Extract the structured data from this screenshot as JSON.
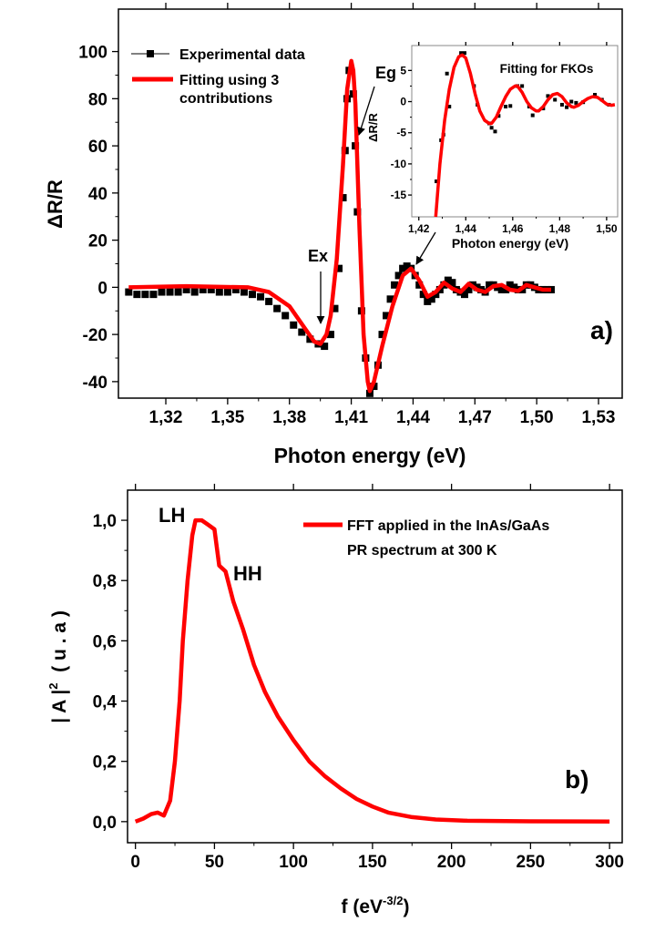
{
  "colors": {
    "fit": "#ff0000",
    "data": "#000000",
    "axis": "#000000"
  },
  "chart_data": [
    {
      "type": "line",
      "panel_label": "a)",
      "xlabel": "Photon energy (eV)",
      "ylabel": "ΔR/R",
      "xlim": [
        1.297,
        1.5415
      ],
      "ylim": [
        -47,
        118
      ],
      "xticks": [
        1.32,
        1.35,
        1.38,
        1.41,
        1.44,
        1.47,
        1.5,
        1.53
      ],
      "xtick_labels": [
        "1,32",
        "1,35",
        "1,38",
        "1,41",
        "1,44",
        "1,47",
        "1,50",
        "1,53"
      ],
      "yticks": [
        -40,
        -20,
        0,
        20,
        40,
        60,
        80,
        100
      ],
      "ytick_labels": [
        "-40",
        "-20",
        "0",
        "20",
        "40",
        "60",
        "80",
        "100"
      ],
      "grid": false,
      "legend_position": "top-left",
      "annotations": [
        "Eg",
        "Ex"
      ],
      "series": [
        {
          "name": "Experimental data",
          "style": "scatter-square",
          "x": [
            1.302,
            1.306,
            1.31,
            1.314,
            1.318,
            1.322,
            1.326,
            1.33,
            1.334,
            1.338,
            1.342,
            1.346,
            1.35,
            1.354,
            1.358,
            1.362,
            1.366,
            1.37,
            1.374,
            1.378,
            1.382,
            1.386,
            1.39,
            1.394,
            1.397,
            1.4,
            1.402,
            1.404,
            1.406,
            1.407,
            1.408,
            1.409,
            1.411,
            1.412,
            1.413,
            1.415,
            1.417,
            1.419,
            1.421,
            1.423,
            1.425,
            1.427,
            1.429,
            1.431,
            1.433,
            1.435,
            1.437,
            1.439,
            1.441,
            1.443,
            1.445,
            1.447,
            1.449,
            1.451,
            1.453,
            1.455,
            1.457,
            1.459,
            1.461,
            1.463,
            1.465,
            1.467,
            1.469,
            1.471,
            1.473,
            1.475,
            1.477,
            1.479,
            1.481,
            1.483,
            1.485,
            1.487,
            1.489,
            1.491,
            1.493,
            1.495,
            1.497,
            1.499,
            1.501,
            1.503,
            1.505,
            1.507
          ],
          "y": [
            -2,
            -3,
            -3,
            -3,
            -2,
            -2,
            -2,
            -1,
            -2,
            -1,
            -1,
            -2,
            -2,
            -1,
            -2,
            -3,
            -4,
            -6,
            -9,
            -12,
            -16,
            -19,
            -22,
            -24,
            -25,
            -20,
            -9,
            8,
            38,
            58,
            80,
            92,
            82,
            60,
            32,
            -10,
            -30,
            -45,
            -42,
            -33,
            -20,
            -12,
            -5,
            1,
            5,
            8,
            9,
            8,
            5,
            1,
            -3,
            -6,
            -5,
            -3,
            -1,
            1,
            3,
            2,
            -1,
            -2,
            -3,
            -1,
            1,
            0,
            -1,
            -2,
            1,
            1,
            0,
            -1,
            -1,
            1,
            0,
            -1,
            -1,
            1,
            1,
            0,
            -1,
            -1,
            -1,
            -1
          ]
        },
        {
          "name": "Fitting using 3 contributions",
          "style": "line",
          "x": [
            1.302,
            1.33,
            1.36,
            1.37,
            1.38,
            1.388,
            1.392,
            1.395,
            1.398,
            1.4,
            1.403,
            1.406,
            1.408,
            1.41,
            1.411,
            1.412,
            1.414,
            1.416,
            1.418,
            1.419,
            1.421,
            1.425,
            1.43,
            1.435,
            1.439,
            1.443,
            1.447,
            1.451,
            1.455,
            1.459,
            1.463,
            1.467,
            1.471,
            1.475,
            1.479,
            1.483,
            1.487,
            1.491,
            1.495,
            1.499,
            1.503,
            1.507
          ],
          "y": [
            0,
            0.5,
            0,
            -2,
            -8,
            -18,
            -23,
            -24,
            -20,
            -12,
            12,
            52,
            84,
            96,
            92,
            78,
            25,
            -20,
            -40,
            -44,
            -40,
            -25,
            -8,
            5,
            8,
            3,
            -4,
            -2,
            2,
            -0.5,
            -2,
            1.5,
            -1,
            -2,
            0.5,
            1,
            -1,
            -1.5,
            1,
            0,
            -1,
            -1
          ]
        }
      ]
    },
    {
      "type": "line",
      "title": "Fitting for FKOs",
      "role": "inset",
      "xlabel": "Photon energy (eV)",
      "ylabel": "ΔR/R",
      "xlim": [
        1.417,
        1.5047
      ],
      "ylim": [
        -18.5,
        9
      ],
      "xticks": [
        1.42,
        1.44,
        1.46,
        1.48,
        1.5
      ],
      "xtick_labels": [
        "1,42",
        "1,44",
        "1,46",
        "1,48",
        "1,50"
      ],
      "yticks": [
        -15,
        -10,
        -5,
        0,
        5
      ],
      "ytick_labels": [
        "-15",
        "-10",
        "-5",
        "0",
        "5"
      ],
      "series": [
        {
          "style": "scatter-square",
          "x": [
            1.4275,
            1.4295,
            1.4305,
            1.432,
            1.433,
            1.438,
            1.4395,
            1.4435,
            1.445,
            1.45,
            1.451,
            1.4525,
            1.454,
            1.457,
            1.459,
            1.462,
            1.464,
            1.467,
            1.4685,
            1.473,
            1.475,
            1.478,
            1.481,
            1.483,
            1.485,
            1.487,
            1.49,
            1.495,
            1.498,
            1.501
          ],
          "y": [
            -12.8,
            -6.2,
            -5.3,
            4.5,
            -0.8,
            7.8,
            7.8,
            2.5,
            -0.5,
            -3.5,
            -4.2,
            -4.8,
            -2.3,
            -0.8,
            -0.7,
            2.5,
            2.5,
            -0.8,
            -2.2,
            -1.1,
            0.9,
            0.3,
            -0.5,
            -0.9,
            0,
            -0.2,
            -0.1,
            1.1,
            0.3,
            -0.5
          ]
        },
        {
          "style": "line",
          "x": [
            1.4272,
            1.429,
            1.431,
            1.433,
            1.435,
            1.437,
            1.4385,
            1.44,
            1.442,
            1.444,
            1.446,
            1.448,
            1.45,
            1.451,
            1.453,
            1.455,
            1.457,
            1.459,
            1.461,
            1.462,
            1.464,
            1.466,
            1.468,
            1.47,
            1.471,
            1.473,
            1.475,
            1.477,
            1.479,
            1.481,
            1.483,
            1.485,
            1.486,
            1.488,
            1.49,
            1.492,
            1.494,
            1.496,
            1.498,
            1.5,
            1.502,
            1.5035
          ],
          "y": [
            -18.5,
            -10,
            -3,
            2,
            5.5,
            7.2,
            7.5,
            7,
            4.5,
            1.2,
            -1.5,
            -3,
            -3.5,
            -3.5,
            -2.5,
            -0.8,
            0.8,
            2,
            2.5,
            2.5,
            1.5,
            0,
            -1,
            -1.5,
            -1.5,
            -0.8,
            0.3,
            1.1,
            1.3,
            0.8,
            -0.2,
            -0.8,
            -0.9,
            -0.6,
            0,
            0.5,
            0.8,
            0.7,
            0.2,
            -0.4,
            -0.6,
            -0.5
          ]
        }
      ]
    },
    {
      "type": "line",
      "panel_label": "b)",
      "xlabel": "f (eV",
      "xlabel_sup": "-3/2",
      "xlabel_end": ")",
      "ylabel": "| A |",
      "ylabel_sup": "2",
      "ylabel_end": "( u . a )",
      "xlim": [
        -5,
        308
      ],
      "ylim": [
        -0.07,
        1.1
      ],
      "xticks": [
        0,
        50,
        100,
        150,
        200,
        250,
        300
      ],
      "xtick_labels": [
        "0",
        "50",
        "100",
        "150",
        "200",
        "250",
        "300"
      ],
      "yticks": [
        0,
        0.2,
        0.4,
        0.6,
        0.8,
        1.0
      ],
      "ytick_labels": [
        "0,0",
        "0,2",
        "0,4",
        "0,6",
        "0,8",
        "1,0"
      ],
      "legend_position": "top-right",
      "annotations": [
        "LH",
        "HH"
      ],
      "series": [
        {
          "name": "FFT applied in the InAs/GaAs PR spectrum at 300 K",
          "legend_lines": [
            "FFT applied in the InAs/GaAs",
            "PR spectrum at 300 K"
          ],
          "x": [
            0,
            5,
            10,
            14,
            18,
            22,
            25,
            28,
            30,
            33,
            36,
            38,
            42,
            46,
            50,
            53,
            57,
            62,
            68,
            75,
            82,
            90,
            100,
            110,
            120,
            130,
            140,
            150,
            160,
            175,
            190,
            210,
            250,
            300
          ],
          "y": [
            0,
            0.01,
            0.025,
            0.03,
            0.02,
            0.07,
            0.2,
            0.4,
            0.6,
            0.8,
            0.95,
            1.0,
            1.0,
            0.985,
            0.97,
            0.85,
            0.83,
            0.73,
            0.64,
            0.52,
            0.43,
            0.35,
            0.27,
            0.2,
            0.15,
            0.11,
            0.075,
            0.05,
            0.03,
            0.015,
            0.007,
            0.003,
            0.001,
            0
          ]
        }
      ]
    }
  ]
}
